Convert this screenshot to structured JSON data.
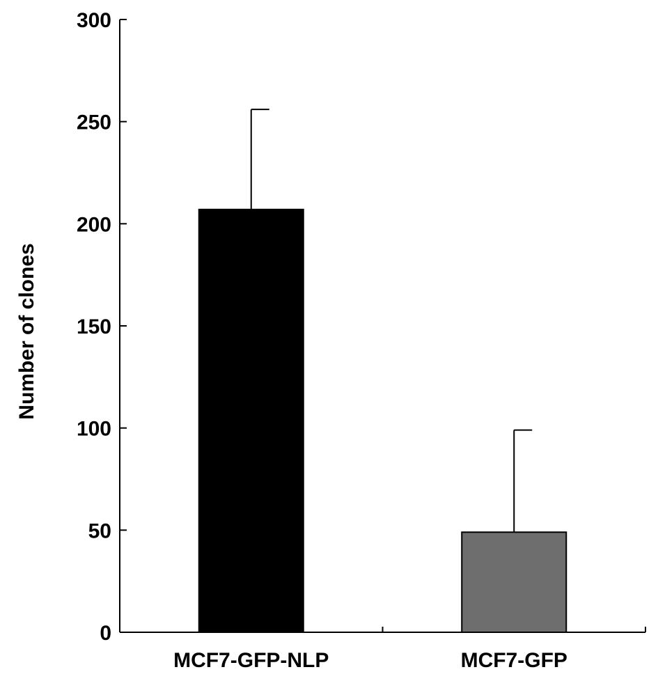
{
  "chart_data": {
    "type": "bar",
    "categories": [
      "MCF7-GFP-NLP",
      "MCF7-GFP"
    ],
    "values": [
      207,
      49
    ],
    "error_upper": [
      256,
      99
    ],
    "bar_colors": [
      "#000000",
      "#6e6e6e"
    ],
    "ylabel": "Number of clones",
    "xlabel": "",
    "ylim": [
      0,
      300
    ],
    "yticks": [
      0,
      50,
      100,
      150,
      200,
      250,
      300
    ],
    "grid": false
  }
}
